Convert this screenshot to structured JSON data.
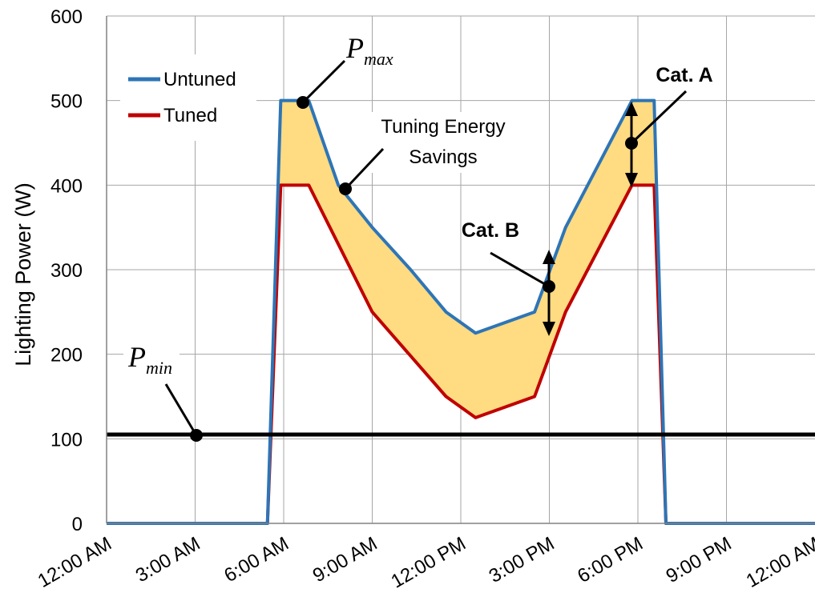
{
  "chart_data": {
    "type": "line",
    "title": "",
    "xlabel": "",
    "ylabel": "Lighting Power (W)",
    "xlim": [
      0,
      24
    ],
    "ylim": [
      0,
      600
    ],
    "y_ticks": [
      0,
      100,
      200,
      300,
      400,
      500,
      600
    ],
    "x_ticks": [
      0,
      3,
      6,
      9,
      12,
      15,
      18,
      21,
      24
    ],
    "x_tick_labels": [
      "12:00 AM",
      "3:00 AM",
      "6:00 AM",
      "9:00 AM",
      "12:00 PM",
      "3:00 PM",
      "6:00 PM",
      "9:00 PM",
      "12:00 AM"
    ],
    "x_unit": "hour of day",
    "grid": true,
    "legend_position": "top-left",
    "series": [
      {
        "name": "Untuned",
        "color": "#2e75b6",
        "x": [
          0,
          5.45,
          5.9,
          6.85,
          7.85,
          9,
          10.3,
          11.5,
          12.5,
          14.5,
          15.55,
          17.8,
          18.55,
          18.95,
          24
        ],
        "y": [
          0,
          0,
          500,
          500,
          400,
          350,
          300,
          250,
          225,
          250,
          350,
          500,
          500,
          0,
          0
        ]
      },
      {
        "name": "Tuned",
        "color": "#c00000",
        "x": [
          0,
          5.45,
          5.9,
          6.85,
          9,
          11.5,
          12.5,
          14.5,
          15.55,
          17.8,
          18.55,
          18.95,
          24
        ],
        "y": [
          0,
          0,
          400,
          400,
          250,
          150,
          125,
          150,
          250,
          400,
          400,
          0,
          0
        ]
      }
    ],
    "threshold": {
      "y": 105,
      "color": "#000000"
    },
    "fill_color": "#ffdb82",
    "annotations": {
      "p_max": {
        "symbol": "P",
        "subscript": "max",
        "point": [
          7,
          500
        ]
      },
      "p_min": {
        "symbol": "P",
        "subscript": "min",
        "point": [
          3,
          105
        ]
      },
      "savings": {
        "line1": "Tuning Energy",
        "line2": "Savings",
        "point": [
          8.4,
          395
        ]
      },
      "cat_a": {
        "label": "Cat. A",
        "point": [
          18.9,
          450
        ],
        "range": [
          400,
          500
        ]
      },
      "cat_b": {
        "label": "Cat. B",
        "point": [
          15,
          280
        ],
        "range": [
          225,
          325
        ]
      }
    }
  }
}
